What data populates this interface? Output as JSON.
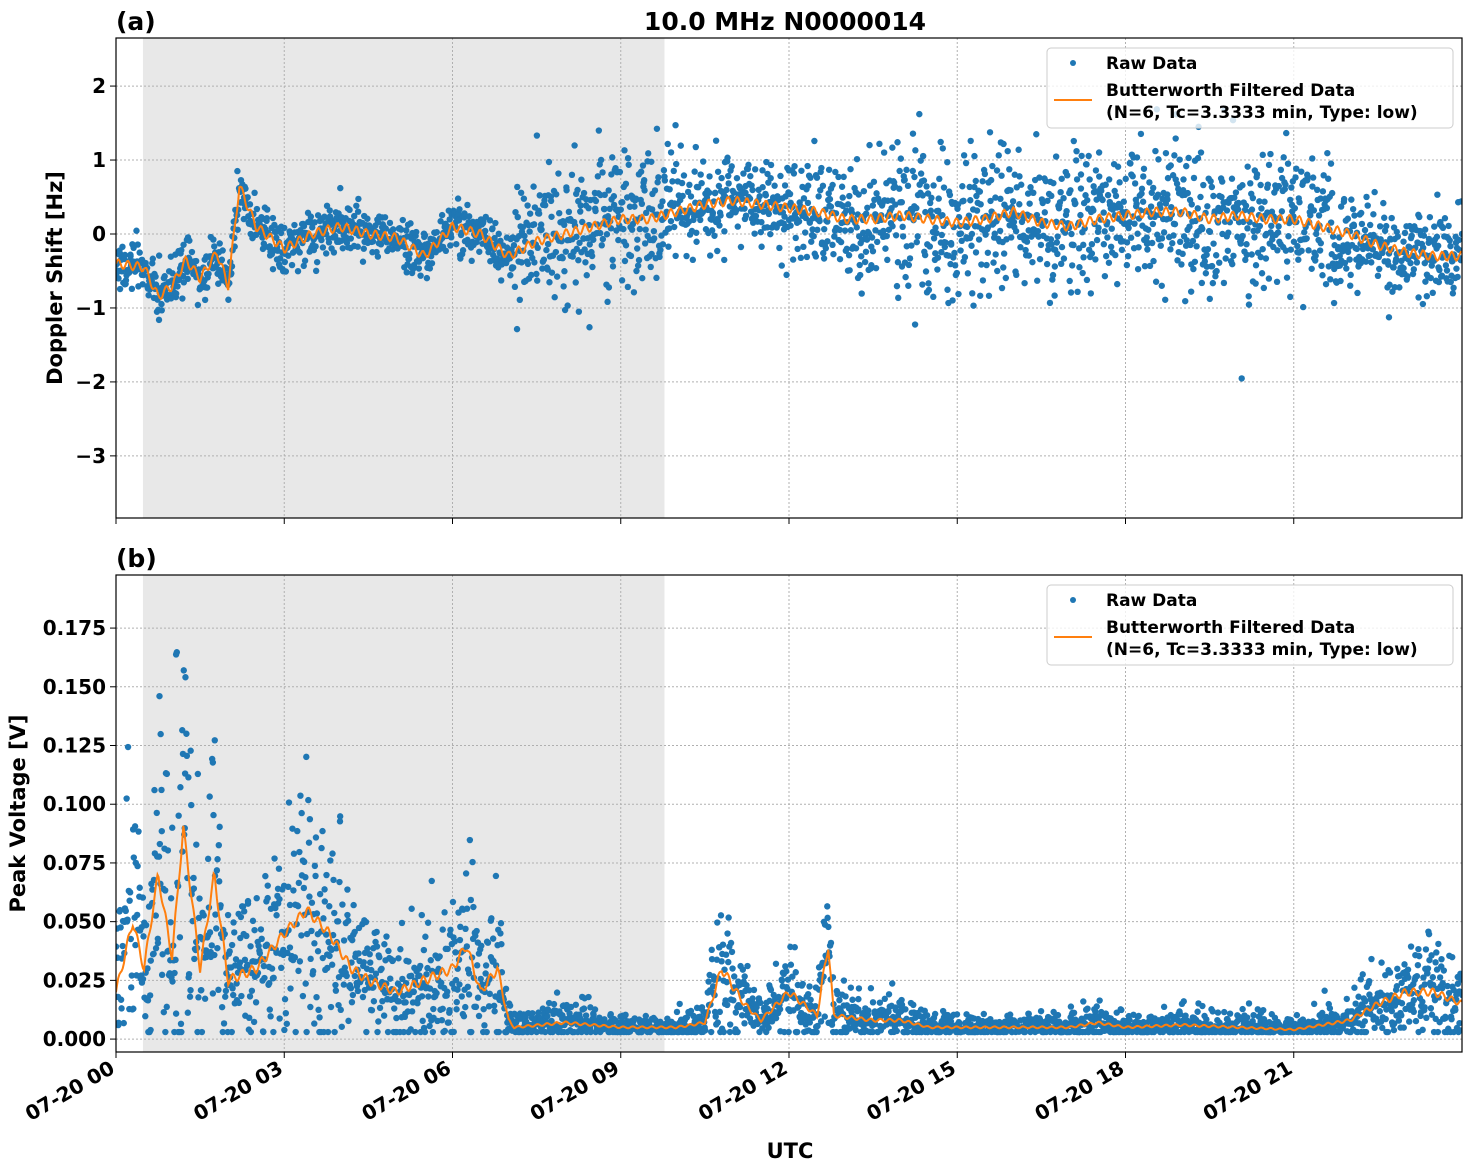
{
  "title": "10.0 MHz N0000014",
  "xlabel": "UTC",
  "x_tick_labels": [
    "07-20 00",
    "07-20 03",
    "07-20 06",
    "07-20 09",
    "07-20 12",
    "07-20 15",
    "07-20 18",
    "07-20 21"
  ],
  "colors": {
    "raw": "#1f77b4",
    "filtered": "#ff7f0e",
    "shade": "#e8e8e8"
  },
  "chart_data": [
    {
      "type": "scatter",
      "panel_label": "(a)",
      "ylabel": "Doppler Shift [Hz]",
      "xlim_hours_utc": [
        0,
        24
      ],
      "ylim": [
        -3.84,
        2.65
      ],
      "yticks": [
        2,
        1,
        0,
        -1,
        -2,
        -3
      ],
      "ytick_labels": [
        "2",
        "1",
        "0",
        "−1",
        "−2",
        "−3"
      ],
      "grid": true,
      "shaded_interval_hours_utc": [
        0.48,
        9.78
      ],
      "legend": {
        "placement": "top-right",
        "entries": [
          "Raw Data",
          "Butterworth Filtered Data",
          "(N=6, Tc=3.3333 min, Type: low)"
        ]
      },
      "filtered": {
        "hours": [
          0,
          0.5,
          0.75,
          1,
          1.25,
          1.5,
          1.8,
          2,
          2.2,
          2.5,
          3,
          3.5,
          4,
          4.5,
          5,
          5.5,
          6,
          6.5,
          7,
          7.5,
          8,
          8.5,
          9,
          9.5,
          10,
          10.5,
          11,
          11.5,
          12,
          12.5,
          13,
          13.5,
          14,
          14.5,
          15,
          15.5,
          16,
          16.5,
          17,
          17.5,
          18,
          18.5,
          19,
          19.5,
          20,
          20.5,
          21,
          21.5,
          22,
          22.5,
          23,
          23.5,
          24
        ],
        "values": [
          -0.4,
          -0.45,
          -0.85,
          -0.7,
          -0.35,
          -0.6,
          -0.25,
          -0.7,
          0.65,
          0.1,
          -0.2,
          0.0,
          0.1,
          0.0,
          -0.05,
          -0.3,
          0.1,
          0.0,
          -0.3,
          -0.1,
          0.0,
          0.1,
          0.2,
          0.2,
          0.3,
          0.4,
          0.45,
          0.4,
          0.35,
          0.3,
          0.2,
          0.2,
          0.25,
          0.2,
          0.15,
          0.2,
          0.3,
          0.15,
          0.1,
          0.2,
          0.25,
          0.3,
          0.3,
          0.2,
          0.25,
          0.2,
          0.2,
          0.1,
          0.0,
          -0.15,
          -0.25,
          -0.3,
          -0.3
        ]
      },
      "raw_spread": {
        "hours": [
          0,
          7,
          7.1,
          9.8,
          10,
          11,
          13,
          14,
          21.5,
          22,
          24
        ],
        "half_width": [
          0.3,
          0.3,
          0.8,
          0.8,
          0.6,
          0.5,
          0.7,
          0.9,
          0.9,
          0.5,
          0.5
        ]
      }
    },
    {
      "type": "scatter",
      "panel_label": "(b)",
      "ylabel": "Peak Voltage [V]",
      "xlim_hours_utc": [
        0,
        24
      ],
      "ylim": [
        -0.0055,
        0.1976
      ],
      "yticks": [
        0,
        0.025,
        0.05,
        0.075,
        0.1,
        0.125,
        0.15,
        0.175
      ],
      "ytick_labels": [
        "0.000",
        "0.025",
        "0.050",
        "0.075",
        "0.100",
        "0.125",
        "0.150",
        "0.175"
      ],
      "grid": true,
      "shaded_interval_hours_utc": [
        0.48,
        9.78
      ],
      "legend": {
        "placement": "top-right",
        "entries": [
          "Raw Data",
          "Butterworth Filtered Data",
          "(N=6, Tc=3.3333 min, Type: low)"
        ]
      },
      "filtered": {
        "hours": [
          0,
          0.3,
          0.5,
          0.75,
          1,
          1.2,
          1.5,
          1.75,
          2,
          2.5,
          3,
          3.4,
          3.8,
          4.2,
          4.5,
          5,
          5.5,
          6,
          6.25,
          6.5,
          6.8,
          7,
          7.1,
          8,
          8.5,
          9,
          10,
          10.5,
          10.8,
          11.2,
          11.5,
          12,
          12.5,
          12.7,
          12.8,
          13.5,
          14,
          14.5,
          17,
          17.5,
          18,
          19,
          21,
          22,
          22.5,
          23,
          23.5,
          24
        ],
        "values": [
          0.02,
          0.05,
          0.03,
          0.07,
          0.035,
          0.09,
          0.03,
          0.07,
          0.025,
          0.03,
          0.045,
          0.055,
          0.045,
          0.03,
          0.025,
          0.02,
          0.025,
          0.03,
          0.04,
          0.02,
          0.03,
          0.008,
          0.005,
          0.007,
          0.006,
          0.005,
          0.005,
          0.007,
          0.03,
          0.015,
          0.008,
          0.02,
          0.01,
          0.04,
          0.01,
          0.008,
          0.008,
          0.005,
          0.005,
          0.007,
          0.005,
          0.006,
          0.004,
          0.008,
          0.015,
          0.02,
          0.02,
          0.015
        ]
      }
    }
  ]
}
